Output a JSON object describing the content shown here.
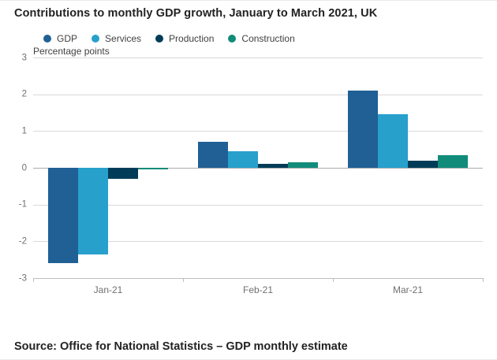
{
  "footer": {
    "source": "Source: Office for National Statistics – GDP monthly estimate"
  },
  "chart_data": {
    "type": "bar",
    "title": "Contributions to monthly GDP growth, January to March 2021, UK",
    "ylabel": "Percentage points",
    "categories": [
      "Jan-21",
      "Feb-21",
      "Mar-21"
    ],
    "series": [
      {
        "name": "GDP",
        "color": "#206095",
        "values": [
          -2.6,
          0.7,
          2.1
        ]
      },
      {
        "name": "Services",
        "color": "#27A0CC",
        "values": [
          -2.35,
          0.45,
          1.45
        ]
      },
      {
        "name": "Production",
        "color": "#003C57",
        "values": [
          -0.3,
          0.1,
          0.2
        ]
      },
      {
        "name": "Construction",
        "color": "#118C7B",
        "values": [
          -0.05,
          0.15,
          0.35
        ]
      }
    ],
    "ylim": [
      -3,
      3
    ],
    "yticks": [
      3,
      2,
      1,
      0,
      -1,
      -2,
      -3
    ],
    "grid": true,
    "legend_position": "top"
  }
}
